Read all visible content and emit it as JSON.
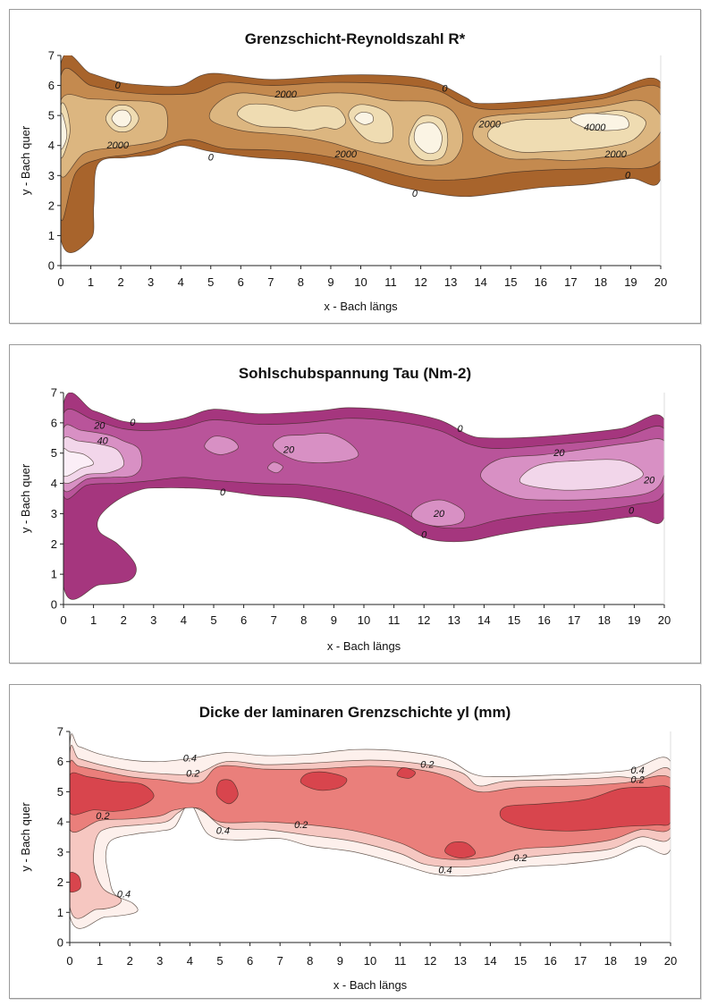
{
  "chart_data": [
    {
      "type": "contour",
      "title": "Grenzschicht-Reynoldszahl R*",
      "xlabel": "x - Bach längs",
      "ylabel": "y - Bach quer",
      "xlim": [
        0,
        20
      ],
      "ylim": [
        0,
        7
      ],
      "xticks": [
        0,
        1,
        2,
        3,
        4,
        5,
        6,
        7,
        8,
        9,
        10,
        11,
        12,
        13,
        14,
        15,
        16,
        17,
        18,
        19,
        20
      ],
      "yticks": [
        0,
        1,
        2,
        3,
        4,
        5,
        6,
        7
      ],
      "grid": false,
      "levels": [
        "0",
        "2000",
        "4000"
      ],
      "colors": [
        "#a8642c",
        "#c48a4f",
        "#dcb680",
        "#efdcb2",
        "#fbf4e4"
      ],
      "contour_labels": [
        {
          "text": "0",
          "x": 1.9,
          "y": 5.9
        },
        {
          "text": "0",
          "x": 5.0,
          "y": 3.5
        },
        {
          "text": "0",
          "x": 12.8,
          "y": 5.8
        },
        {
          "text": "0",
          "x": 11.8,
          "y": 2.3
        },
        {
          "text": "0",
          "x": 18.9,
          "y": 2.9
        },
        {
          "text": "2000",
          "x": 1.9,
          "y": 3.9
        },
        {
          "text": "2000",
          "x": 7.5,
          "y": 5.6
        },
        {
          "text": "2000",
          "x": 9.5,
          "y": 3.6
        },
        {
          "text": "2000",
          "x": 14.3,
          "y": 4.6
        },
        {
          "text": "2000",
          "x": 18.5,
          "y": 3.6
        },
        {
          "text": "4000",
          "x": 17.8,
          "y": 4.5
        }
      ]
    },
    {
      "type": "contour",
      "title": "Sohlschubspannung Tau (Nm-2)",
      "xlabel": "x - Bach längs",
      "ylabel": "y - Bach quer",
      "xlim": [
        0,
        20
      ],
      "ylim": [
        0,
        7
      ],
      "xticks": [
        0,
        1,
        2,
        3,
        4,
        5,
        6,
        7,
        8,
        9,
        10,
        11,
        12,
        13,
        14,
        15,
        16,
        17,
        18,
        19,
        20
      ],
      "yticks": [
        0,
        1,
        2,
        3,
        4,
        5,
        6,
        7
      ],
      "grid": false,
      "levels": [
        "0",
        "20",
        "40"
      ],
      "colors": [
        "#a5367e",
        "#b9549a",
        "#d890c4",
        "#f2d6ea",
        "#fbeef7"
      ],
      "contour_labels": [
        {
          "text": "0",
          "x": 2.3,
          "y": 5.9
        },
        {
          "text": "0",
          "x": 5.3,
          "y": 3.6
        },
        {
          "text": "0",
          "x": 13.2,
          "y": 5.7
        },
        {
          "text": "0",
          "x": 12.0,
          "y": 2.2
        },
        {
          "text": "0",
          "x": 18.9,
          "y": 3.0
        },
        {
          "text": "20",
          "x": 1.2,
          "y": 5.8
        },
        {
          "text": "40",
          "x": 1.3,
          "y": 5.3
        },
        {
          "text": "20",
          "x": 7.5,
          "y": 5.0
        },
        {
          "text": "20",
          "x": 12.5,
          "y": 2.9
        },
        {
          "text": "20",
          "x": 16.5,
          "y": 4.9
        },
        {
          "text": "20",
          "x": 19.5,
          "y": 4.0
        }
      ]
    },
    {
      "type": "contour",
      "title": "Dicke der laminaren Grenzschichte yl (mm)",
      "xlabel": "x - Bach längs",
      "ylabel": "y - Bach quer",
      "xlim": [
        0,
        20
      ],
      "ylim": [
        0,
        7
      ],
      "xticks": [
        0,
        1,
        2,
        3,
        4,
        5,
        6,
        7,
        8,
        9,
        10,
        11,
        12,
        13,
        14,
        15,
        16,
        17,
        18,
        19,
        20
      ],
      "yticks": [
        0,
        1,
        2,
        3,
        4,
        5,
        6,
        7
      ],
      "grid": false,
      "levels": [
        "0.2",
        "0.4"
      ],
      "colors": [
        "#d8454d",
        "#ea7f7b",
        "#f6c7c1",
        "#fdf0ec"
      ],
      "contour_labels": [
        {
          "text": "0.4",
          "x": 4.0,
          "y": 6.0
        },
        {
          "text": "0.2",
          "x": 4.1,
          "y": 5.5
        },
        {
          "text": "0.2",
          "x": 11.9,
          "y": 5.8
        },
        {
          "text": "0.4",
          "x": 18.9,
          "y": 5.6
        },
        {
          "text": "0.2",
          "x": 18.9,
          "y": 5.3
        },
        {
          "text": "0.2",
          "x": 1.1,
          "y": 4.1
        },
        {
          "text": "0.4",
          "x": 5.1,
          "y": 3.6
        },
        {
          "text": "0.2",
          "x": 7.7,
          "y": 3.8
        },
        {
          "text": "0.4",
          "x": 12.5,
          "y": 2.3
        },
        {
          "text": "0.2",
          "x": 15.0,
          "y": 2.7
        },
        {
          "text": "0.4",
          "x": 1.8,
          "y": 1.5
        }
      ]
    }
  ]
}
